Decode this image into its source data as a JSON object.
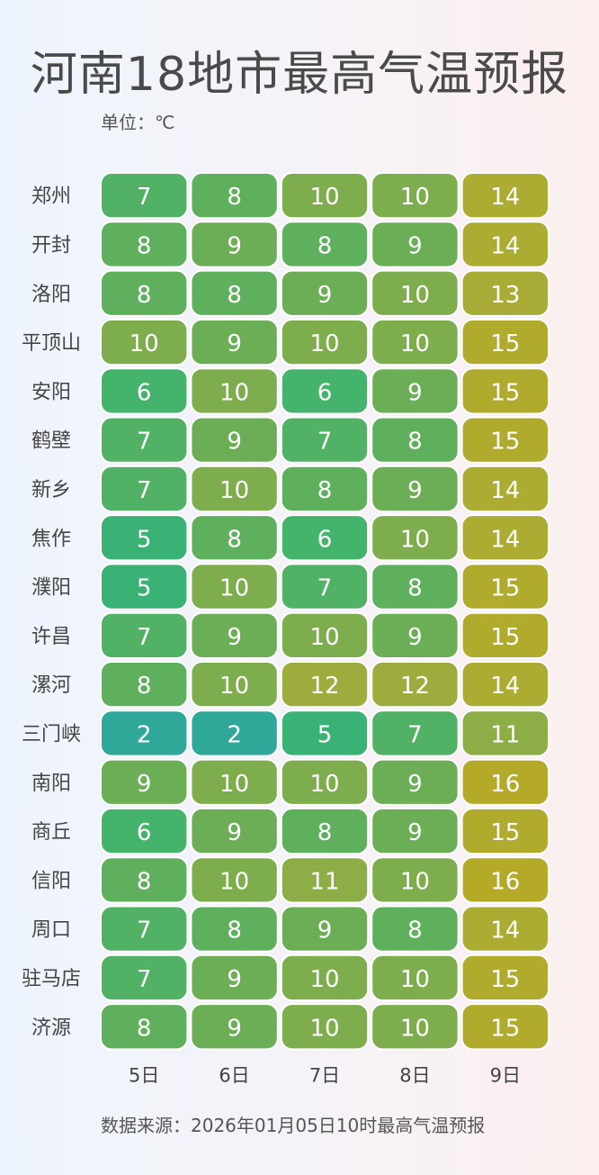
{
  "title": "河南18地市最高气温预报",
  "unit": "单位：℃",
  "source": "数据来源：2026年01月05日10时最高气温预报",
  "chart_data": {
    "type": "heatmap",
    "title": "河南18地市最高气温预报",
    "columns": [
      "5日",
      "6日",
      "7日",
      "8日",
      "9日"
    ],
    "rows": [
      "郑州",
      "开封",
      "洛阳",
      "平顶山",
      "安阳",
      "鹤壁",
      "新乡",
      "焦作",
      "濮阳",
      "许昌",
      "漯河",
      "三门峡",
      "南阳",
      "商丘",
      "信阳",
      "周口",
      "驻马店",
      "济源"
    ],
    "values": [
      [
        7,
        8,
        10,
        10,
        14
      ],
      [
        8,
        9,
        8,
        9,
        14
      ],
      [
        8,
        8,
        9,
        10,
        13
      ],
      [
        10,
        9,
        10,
        10,
        15
      ],
      [
        6,
        10,
        6,
        9,
        15
      ],
      [
        7,
        9,
        7,
        8,
        15
      ],
      [
        7,
        10,
        8,
        9,
        14
      ],
      [
        5,
        8,
        6,
        10,
        14
      ],
      [
        5,
        10,
        7,
        8,
        15
      ],
      [
        7,
        9,
        10,
        9,
        15
      ],
      [
        8,
        10,
        12,
        12,
        14
      ],
      [
        2,
        2,
        5,
        7,
        11
      ],
      [
        9,
        10,
        10,
        9,
        16
      ],
      [
        6,
        9,
        8,
        9,
        15
      ],
      [
        8,
        10,
        11,
        10,
        16
      ],
      [
        7,
        8,
        9,
        8,
        14
      ],
      [
        7,
        9,
        10,
        10,
        15
      ],
      [
        8,
        9,
        10,
        10,
        15
      ]
    ],
    "color_scale": {
      "min": 2,
      "max": 16,
      "stops": [
        "#2fa89a",
        "#3db46f",
        "#6cae55",
        "#a6ac3a",
        "#b4aa28"
      ]
    }
  }
}
